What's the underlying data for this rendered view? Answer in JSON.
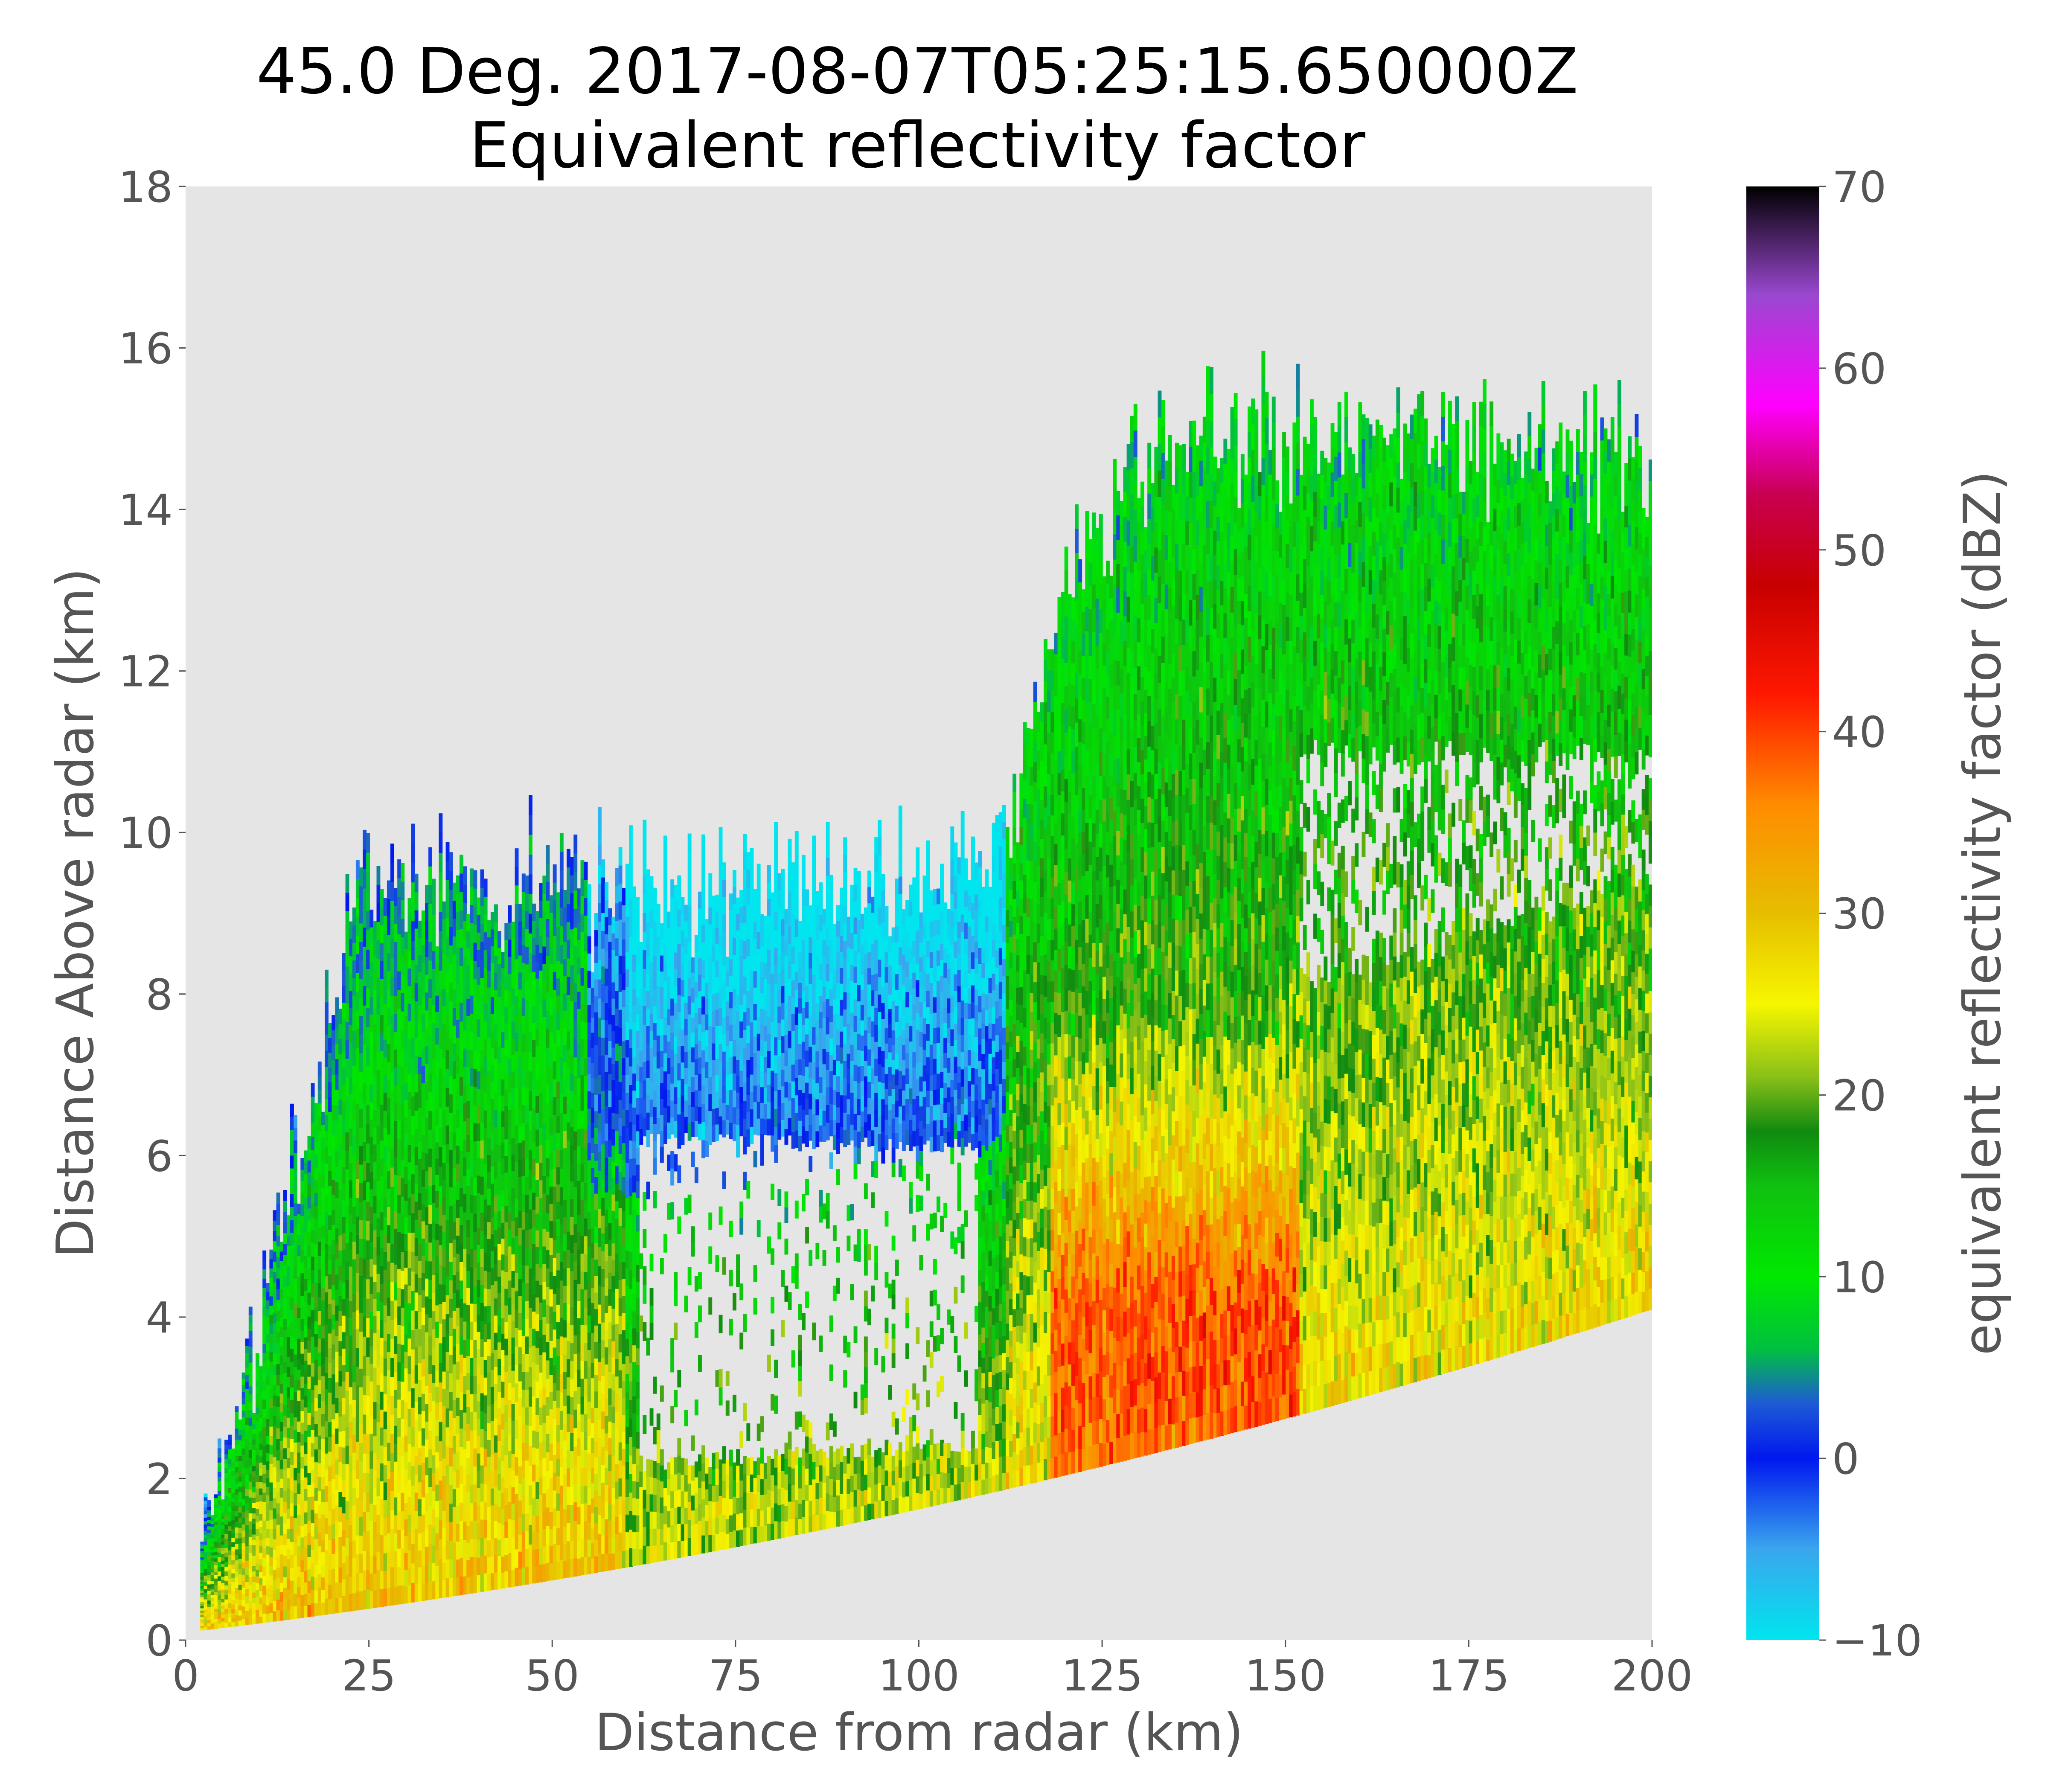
{
  "chart_data": {
    "type": "heatmap",
    "title_lines": [
      "45.0 Deg. 2017-08-07T05:25:15.650000Z",
      "Equivalent reflectivity factor"
    ],
    "xlabel": "Distance from radar (km)",
    "ylabel": "Distance Above radar  (km)",
    "xlim": [
      0,
      200
    ],
    "ylim": [
      0,
      18
    ],
    "xticks": [
      0,
      25,
      50,
      75,
      100,
      125,
      150,
      175,
      200
    ],
    "yticks": [
      0,
      2,
      4,
      6,
      8,
      10,
      12,
      14,
      16,
      18
    ],
    "grid": false,
    "plot_background": "#e5e5e5",
    "sweep_bottom_height_at_200km": 4.1,
    "sweep_top_heights": [
      {
        "x": 25,
        "y": 9.5
      },
      {
        "x": 75,
        "y": 9.3
      },
      {
        "x": 110,
        "y": 9.6
      },
      {
        "x": 120,
        "y": 13.2
      },
      {
        "x": 135,
        "y": 14.8
      },
      {
        "x": 165,
        "y": 15.0
      },
      {
        "x": 200,
        "y": 14.8
      }
    ],
    "reflectivity_regions": [
      {
        "name": "low-level band",
        "x_range": [
          5,
          200
        ],
        "dbz_range": [
          20,
          35
        ]
      },
      {
        "name": "core 1",
        "x_range": [
          120,
          150
        ],
        "y_range": [
          2,
          7
        ],
        "dbz_range": [
          40,
          48
        ]
      },
      {
        "name": "upper anvil",
        "x_range": [
          60,
          110
        ],
        "y_range": [
          6,
          11
        ],
        "dbz_range": [
          0,
          5
        ]
      }
    ],
    "colorbar": {
      "label": "equivalent reflectivity factor (dBZ)",
      "min": -10,
      "max": 70,
      "ticks": [
        -10,
        0,
        10,
        20,
        30,
        40,
        50,
        60,
        70
      ],
      "tick_labels": [
        "−10",
        "0",
        "10",
        "20",
        "30",
        "40",
        "50",
        "60",
        "70"
      ],
      "colors": [
        {
          "v": -10,
          "c": "#00e5ee"
        },
        {
          "v": -5,
          "c": "#3aa6ee"
        },
        {
          "v": 0,
          "c": "#0018ee"
        },
        {
          "v": 3,
          "c": "#1e5ad6"
        },
        {
          "v": 6,
          "c": "#00c040"
        },
        {
          "v": 10,
          "c": "#00e800"
        },
        {
          "v": 15,
          "c": "#10c010"
        },
        {
          "v": 18,
          "c": "#108a10"
        },
        {
          "v": 21,
          "c": "#8ac018"
        },
        {
          "v": 25,
          "c": "#f6f600"
        },
        {
          "v": 30,
          "c": "#e6be00"
        },
        {
          "v": 36,
          "c": "#ff8c00"
        },
        {
          "v": 42,
          "c": "#ff1800"
        },
        {
          "v": 48,
          "c": "#c80000"
        },
        {
          "v": 53,
          "c": "#c80050"
        },
        {
          "v": 58,
          "c": "#ff00ff"
        },
        {
          "v": 64,
          "c": "#9a48d0"
        },
        {
          "v": 70,
          "c": "#000000"
        }
      ]
    }
  }
}
